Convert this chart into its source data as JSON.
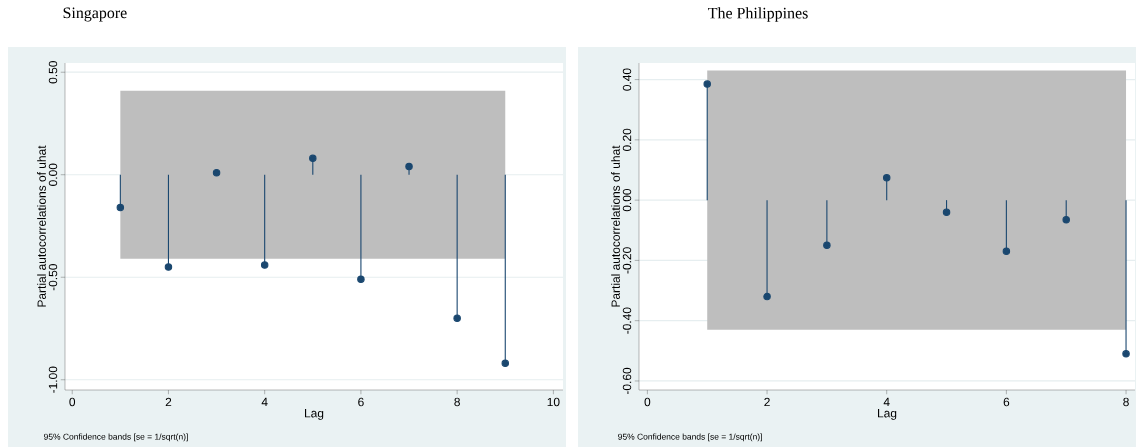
{
  "chart_data": [
    {
      "type": "lollipop",
      "title": "Singapore",
      "xlabel": "Lag",
      "ylabel": "Partial autocorrelations of uhat",
      "annotations": [
        "95% Confidence bands [se = 1/sqrt(n)]"
      ],
      "xlim": [
        -0.15,
        10.2
      ],
      "xticks": [
        0,
        2,
        4,
        6,
        8,
        10
      ],
      "ylim": [
        -1.05,
        0.545
      ],
      "yticks": [
        {
          "value": -1.0,
          "label": "-1.00"
        },
        {
          "value": -0.5,
          "label": "-0.50"
        },
        {
          "value": 0.0,
          "label": "0.00"
        },
        {
          "value": 0.5,
          "label": "0.50"
        }
      ],
      "grid": "y",
      "marker": "circle",
      "series": [
        {
          "type": "area",
          "color": "#bebebe",
          "x": [
            1,
            9
          ],
          "values": [
            null,
            null
          ],
          "lower": [
            -0.41,
            -0.41
          ],
          "upper": [
            0.41,
            0.41
          ]
        },
        {
          "color": "#1a476f",
          "x": [
            1,
            2,
            3,
            4,
            5,
            6,
            7,
            8,
            9
          ],
          "values": [
            -0.16,
            -0.45,
            0.01,
            -0.44,
            0.08,
            -0.51,
            0.04,
            -0.7,
            -0.92
          ]
        }
      ]
    },
    {
      "type": "lollipop",
      "title": "The Philippines",
      "xlabel": "Lag",
      "ylabel": "Partial autocorrelations of uhat",
      "annotations": [
        "95% Confidence bands [se = 1/sqrt(n)]"
      ],
      "xlim": [
        -0.14,
        8.15
      ],
      "xticks": [
        0,
        2,
        4,
        6,
        8
      ],
      "ylim": [
        -0.63,
        0.455
      ],
      "yticks": [
        {
          "value": -0.6,
          "label": "-0.60"
        },
        {
          "value": -0.4,
          "label": "-0.40"
        },
        {
          "value": -0.2,
          "label": "-0.20"
        },
        {
          "value": 0.0,
          "label": "0.00"
        },
        {
          "value": 0.2,
          "label": "0.20"
        },
        {
          "value": 0.4,
          "label": "0.40"
        }
      ],
      "grid": "y",
      "marker": "circle",
      "series": [
        {
          "type": "area",
          "color": "#bebebe",
          "x": [
            1,
            8
          ],
          "values": [
            null,
            null
          ],
          "lower": [
            -0.43,
            -0.43
          ],
          "upper": [
            0.43,
            0.43
          ]
        },
        {
          "color": "#1a476f",
          "x": [
            1,
            2,
            3,
            4,
            5,
            6,
            7,
            8
          ],
          "values": [
            0.385,
            -0.32,
            -0.15,
            0.074,
            -0.04,
            -0.17,
            -0.065,
            -0.51
          ]
        }
      ]
    }
  ]
}
